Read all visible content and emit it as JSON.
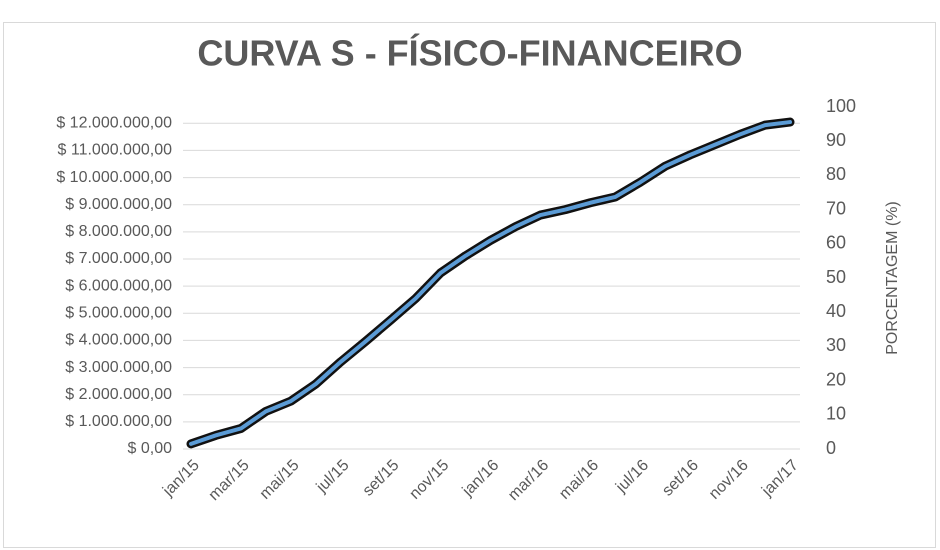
{
  "chart_data": {
    "type": "line",
    "title": "CURVA S - FÍSICO-FINANCEIRO",
    "y2_label": "PORCENTAGEM (%)",
    "categories": [
      "jan/15",
      null,
      "mar/15",
      null,
      "mai/15",
      null,
      "jul/15",
      null,
      "set/15",
      null,
      "nov/15",
      null,
      "jan/16",
      null,
      "mar/16",
      null,
      "mai/16",
      null,
      "jul/16",
      null,
      "set/16",
      null,
      "nov/16",
      null,
      "jan/17"
    ],
    "series": [
      {
        "color": "#5b9bd5",
        "axis": "y2",
        "values": [
          1.5,
          4,
          6,
          11,
          14,
          19,
          25.5,
          31.5,
          37.7,
          44,
          51.5,
          56.5,
          61,
          65,
          68.4,
          70,
          72,
          73.7,
          78,
          82.7,
          86,
          89,
          92,
          94.7,
          95.6
        ]
      }
    ],
    "ylim": [
      0,
      12600000
    ],
    "yticks": [
      {
        "value": 0,
        "label": "$ 0,00"
      },
      {
        "value": 1000000,
        "label": "$ 1.000.000,00"
      },
      {
        "value": 2000000,
        "label": "$ 2.000.000,00"
      },
      {
        "value": 3000000,
        "label": "$ 3.000.000,00"
      },
      {
        "value": 4000000,
        "label": "$ 4.000.000,00"
      },
      {
        "value": 5000000,
        "label": "$ 5.000.000,00"
      },
      {
        "value": 6000000,
        "label": "$ 6.000.000,00"
      },
      {
        "value": 7000000,
        "label": "$ 7.000.000,00"
      },
      {
        "value": 8000000,
        "label": "$ 8.000.000,00"
      },
      {
        "value": 9000000,
        "label": "$ 9.000.000,00"
      },
      {
        "value": 10000000,
        "label": "$ 10.000.000,00"
      },
      {
        "value": 11000000,
        "label": "$ 11.000.000,00"
      },
      {
        "value": 12000000,
        "label": "$ 12.000.000,00"
      }
    ],
    "y2lim": [
      0,
      100
    ],
    "y2ticks": [
      0,
      10,
      20,
      30,
      40,
      50,
      60,
      70,
      80,
      90,
      100
    ],
    "grid": true
  }
}
